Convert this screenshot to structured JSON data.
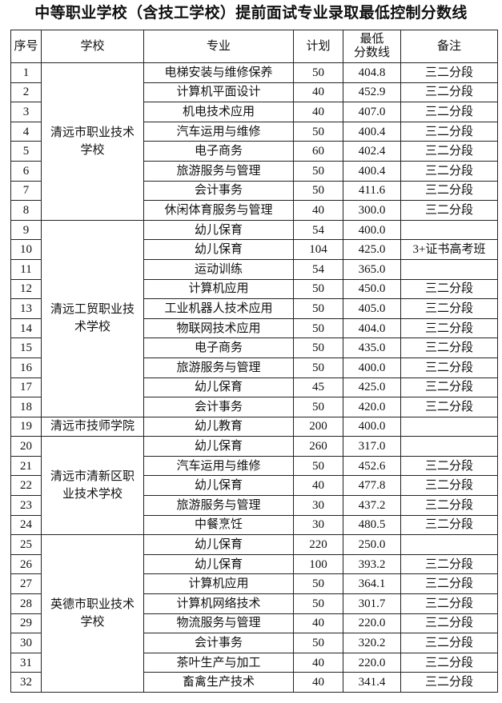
{
  "title": "中等职业学校（含技工学校）提前面试专业录取最低控制分数线",
  "headers": {
    "no": "序号",
    "school": "学校",
    "major": "专业",
    "plan": "计划",
    "score_line1": "最低",
    "score_line2": "分数线",
    "note": "备注"
  },
  "groups": [
    {
      "school": "清远市职业技术学校",
      "rows": [
        {
          "no": "1",
          "major": "电梯安装与维修保养",
          "plan": "50",
          "score": "404.8",
          "note": "三二分段"
        },
        {
          "no": "2",
          "major": "计算机平面设计",
          "plan": "40",
          "score": "452.9",
          "note": "三二分段"
        },
        {
          "no": "3",
          "major": "机电技术应用",
          "plan": "40",
          "score": "407.0",
          "note": "三二分段"
        },
        {
          "no": "4",
          "major": "汽车运用与维修",
          "plan": "50",
          "score": "400.4",
          "note": "三二分段"
        },
        {
          "no": "5",
          "major": "电子商务",
          "plan": "60",
          "score": "402.4",
          "note": "三二分段"
        },
        {
          "no": "6",
          "major": "旅游服务与管理",
          "plan": "50",
          "score": "400.4",
          "note": "三二分段"
        },
        {
          "no": "7",
          "major": "会计事务",
          "plan": "50",
          "score": "411.6",
          "note": "三二分段"
        },
        {
          "no": "8",
          "major": "休闲体育服务与管理",
          "plan": "40",
          "score": "300.0",
          "note": "三二分段"
        }
      ]
    },
    {
      "school": "清远工贸职业技术学校",
      "rows": [
        {
          "no": "9",
          "major": "幼儿保育",
          "plan": "54",
          "score": "400.0",
          "note": ""
        },
        {
          "no": "10",
          "major": "幼儿保育",
          "plan": "104",
          "score": "425.0",
          "note": "3+证书高考班"
        },
        {
          "no": "11",
          "major": "运动训练",
          "plan": "54",
          "score": "365.0",
          "note": ""
        },
        {
          "no": "12",
          "major": "计算机应用",
          "plan": "50",
          "score": "450.0",
          "note": "三二分段"
        },
        {
          "no": "13",
          "major": "工业机器人技术应用",
          "plan": "50",
          "score": "405.0",
          "note": "三二分段"
        },
        {
          "no": "14",
          "major": "物联网技术应用",
          "plan": "50",
          "score": "404.0",
          "note": "三二分段"
        },
        {
          "no": "15",
          "major": "电子商务",
          "plan": "50",
          "score": "435.0",
          "note": "三二分段"
        },
        {
          "no": "16",
          "major": "旅游服务与管理",
          "plan": "50",
          "score": "400.0",
          "note": "三二分段"
        },
        {
          "no": "17",
          "major": "幼儿保育",
          "plan": "45",
          "score": "425.0",
          "note": "三二分段"
        },
        {
          "no": "18",
          "major": "会计事务",
          "plan": "50",
          "score": "420.0",
          "note": "三二分段"
        }
      ]
    },
    {
      "school": "清远市技师学院",
      "rows": [
        {
          "no": "19",
          "major": "幼儿教育",
          "plan": "200",
          "score": "400.0",
          "note": ""
        }
      ]
    },
    {
      "school": "清远市清新区职业技术学校",
      "rows": [
        {
          "no": "20",
          "major": "幼儿保育",
          "plan": "260",
          "score": "317.0",
          "note": ""
        },
        {
          "no": "21",
          "major": "汽车运用与维修",
          "plan": "50",
          "score": "452.6",
          "note": "三二分段"
        },
        {
          "no": "22",
          "major": "幼儿保育",
          "plan": "40",
          "score": "477.8",
          "note": "三二分段"
        },
        {
          "no": "23",
          "major": "旅游服务与管理",
          "plan": "30",
          "score": "437.2",
          "note": "三二分段"
        },
        {
          "no": "24",
          "major": "中餐烹饪",
          "plan": "30",
          "score": "480.5",
          "note": "三二分段"
        }
      ]
    },
    {
      "school": "英德市职业技术学校",
      "rows": [
        {
          "no": "25",
          "major": "幼儿保育",
          "plan": "220",
          "score": "250.0",
          "note": ""
        },
        {
          "no": "26",
          "major": "幼儿保育",
          "plan": "100",
          "score": "393.2",
          "note": "三二分段"
        },
        {
          "no": "27",
          "major": "计算机应用",
          "plan": "50",
          "score": "364.1",
          "note": "三二分段"
        },
        {
          "no": "28",
          "major": "计算机网络技术",
          "plan": "50",
          "score": "301.7",
          "note": "三二分段"
        },
        {
          "no": "29",
          "major": "物流服务与管理",
          "plan": "40",
          "score": "220.0",
          "note": "三二分段"
        },
        {
          "no": "30",
          "major": "会计事务",
          "plan": "50",
          "score": "320.2",
          "note": "三二分段"
        },
        {
          "no": "31",
          "major": "茶叶生产与加工",
          "plan": "40",
          "score": "220.0",
          "note": "三二分段"
        },
        {
          "no": "32",
          "major": "畜禽生产技术",
          "plan": "40",
          "score": "341.4",
          "note": "三二分段"
        }
      ]
    }
  ]
}
